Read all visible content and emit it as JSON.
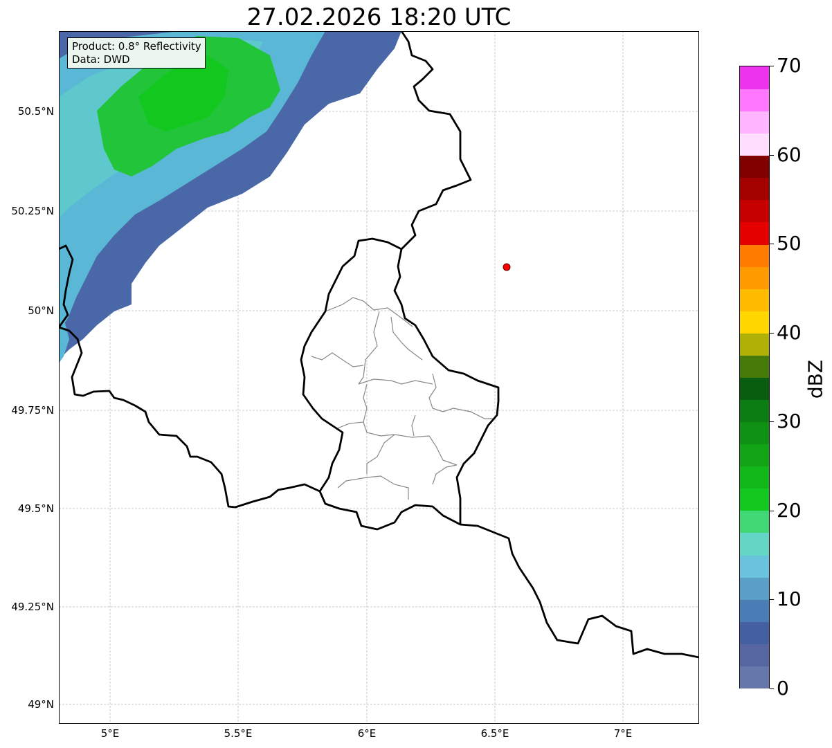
{
  "title": "27.02.2026 18:20 UTC",
  "info": {
    "product": "Product: 0.8° Reflectivity",
    "data": "Data: DWD"
  },
  "lat_labels": [
    "50.5°N",
    "50.25°N",
    "50°N",
    "49.75°N",
    "49.5°N",
    "49.25°N",
    "49°N"
  ],
  "lon_labels": [
    "5°E",
    "5.5°E",
    "6°E",
    "6.5°E",
    "7°E"
  ],
  "colorbar": {
    "label": "dBZ",
    "ticks": [
      "0",
      "10",
      "20",
      "30",
      "40",
      "50",
      "60",
      "70"
    ],
    "colors": [
      "#6677aa",
      "#5566a0",
      "#4560a0",
      "#4a7db5",
      "#5a9fc8",
      "#6ac3dc",
      "#63d6c6",
      "#3fd874",
      "#12c81e",
      "#12b81a",
      "#11a516",
      "#0f9214",
      "#0c7d12",
      "#085e0e",
      "#467b0a",
      "#b0b106",
      "#ffd700",
      "#ffbb00",
      "#ff9b00",
      "#ff7c00",
      "#e50000",
      "#c60000",
      "#a30000",
      "#800000",
      "#ffddff",
      "#ffb5ff",
      "#ff77ff",
      "#ee33ee"
    ]
  },
  "station_marker": {
    "lon": 6.55,
    "lat": 50.11,
    "color": "#ff0000"
  },
  "map": {
    "extent_lon": [
      4.8,
      7.3
    ],
    "extent_lat": [
      48.95,
      50.7
    ],
    "border_color": "#000000",
    "region_line_color": "#888888"
  }
}
